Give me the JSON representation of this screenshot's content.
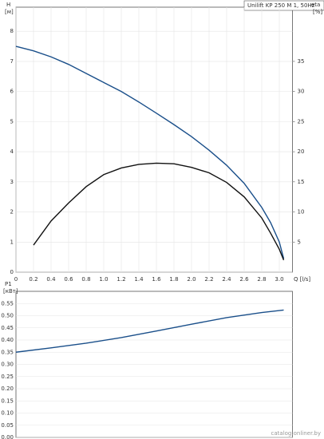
{
  "chart_data": [
    {
      "type": "line",
      "title": "Unilift KP 250 M 1, 50Hz",
      "ylabel": "H",
      "yunit": "[м]",
      "y2label": "eta",
      "y2unit": "[%]",
      "xlabel": "Q [l/s]",
      "x": [
        0,
        0.2,
        0.4,
        0.6,
        0.8,
        1.0,
        1.2,
        1.4,
        1.6,
        1.8,
        2.0,
        2.2,
        2.4,
        2.6,
        2.8,
        2.9,
        3.0,
        3.05
      ],
      "xlim": [
        0,
        3.15
      ],
      "xticks": [
        {
          "value": 0,
          "label": "0"
        },
        0.2,
        0.4,
        0.6,
        0.8,
        {
          "value": 1,
          "label": "1.0"
        },
        1.2,
        1.4,
        1.6,
        1.8,
        {
          "value": 2,
          "label": "2.0"
        },
        2.2,
        2.4,
        2.6,
        2.8,
        {
          "value": 3,
          "label": "3.0"
        }
      ],
      "ylim": [
        0,
        8.8
      ],
      "yticks": [
        0,
        1,
        2,
        3,
        4,
        5,
        6,
        7,
        8
      ],
      "y2lim": [
        0,
        44
      ],
      "y2ticks": [
        5,
        10,
        15,
        20,
        25,
        30,
        35
      ],
      "series": [
        {
          "color": "#1a4f8a",
          "values": [
            7.5,
            7.35,
            7.15,
            6.9,
            6.6,
            6.3,
            6.0,
            5.65,
            5.28,
            4.9,
            4.5,
            4.05,
            3.55,
            2.95,
            2.15,
            1.65,
            1.0,
            0.45
          ]
        },
        {
          "color": "#111111",
          "axis": "y2",
          "values": [
            null,
            4.5,
            8.5,
            11.5,
            14.2,
            16.2,
            17.3,
            17.9,
            18.1,
            18.0,
            17.4,
            16.5,
            14.9,
            12.5,
            9.0,
            6.5,
            3.8,
            2.0
          ]
        }
      ]
    },
    {
      "type": "line",
      "ylabel": "P1",
      "yunit": "[кВт]",
      "x": [
        0,
        0.4,
        0.8,
        1.2,
        1.6,
        2.0,
        2.4,
        2.8,
        3.05
      ],
      "xlim": [
        0,
        3.15
      ],
      "ylim": [
        0,
        0.6
      ],
      "yticks": [
        {
          "value": 0,
          "label": "0.00"
        },
        0.05,
        {
          "value": 0.1,
          "label": "0.10"
        },
        0.15,
        {
          "value": 0.2,
          "label": "0.20"
        },
        0.25,
        {
          "value": 0.3,
          "label": "0.30"
        },
        0.35,
        {
          "value": 0.4,
          "label": "0.40"
        },
        0.45,
        {
          "value": 0.5,
          "label": "0.50"
        },
        0.55
      ],
      "series": [
        {
          "color": "#1a4f8a",
          "values": [
            0.35,
            0.368,
            0.387,
            0.41,
            0.437,
            0.465,
            0.492,
            0.513,
            0.523
          ]
        }
      ]
    },
    {
      "watermark": "catalog.onliner.by"
    }
  ]
}
